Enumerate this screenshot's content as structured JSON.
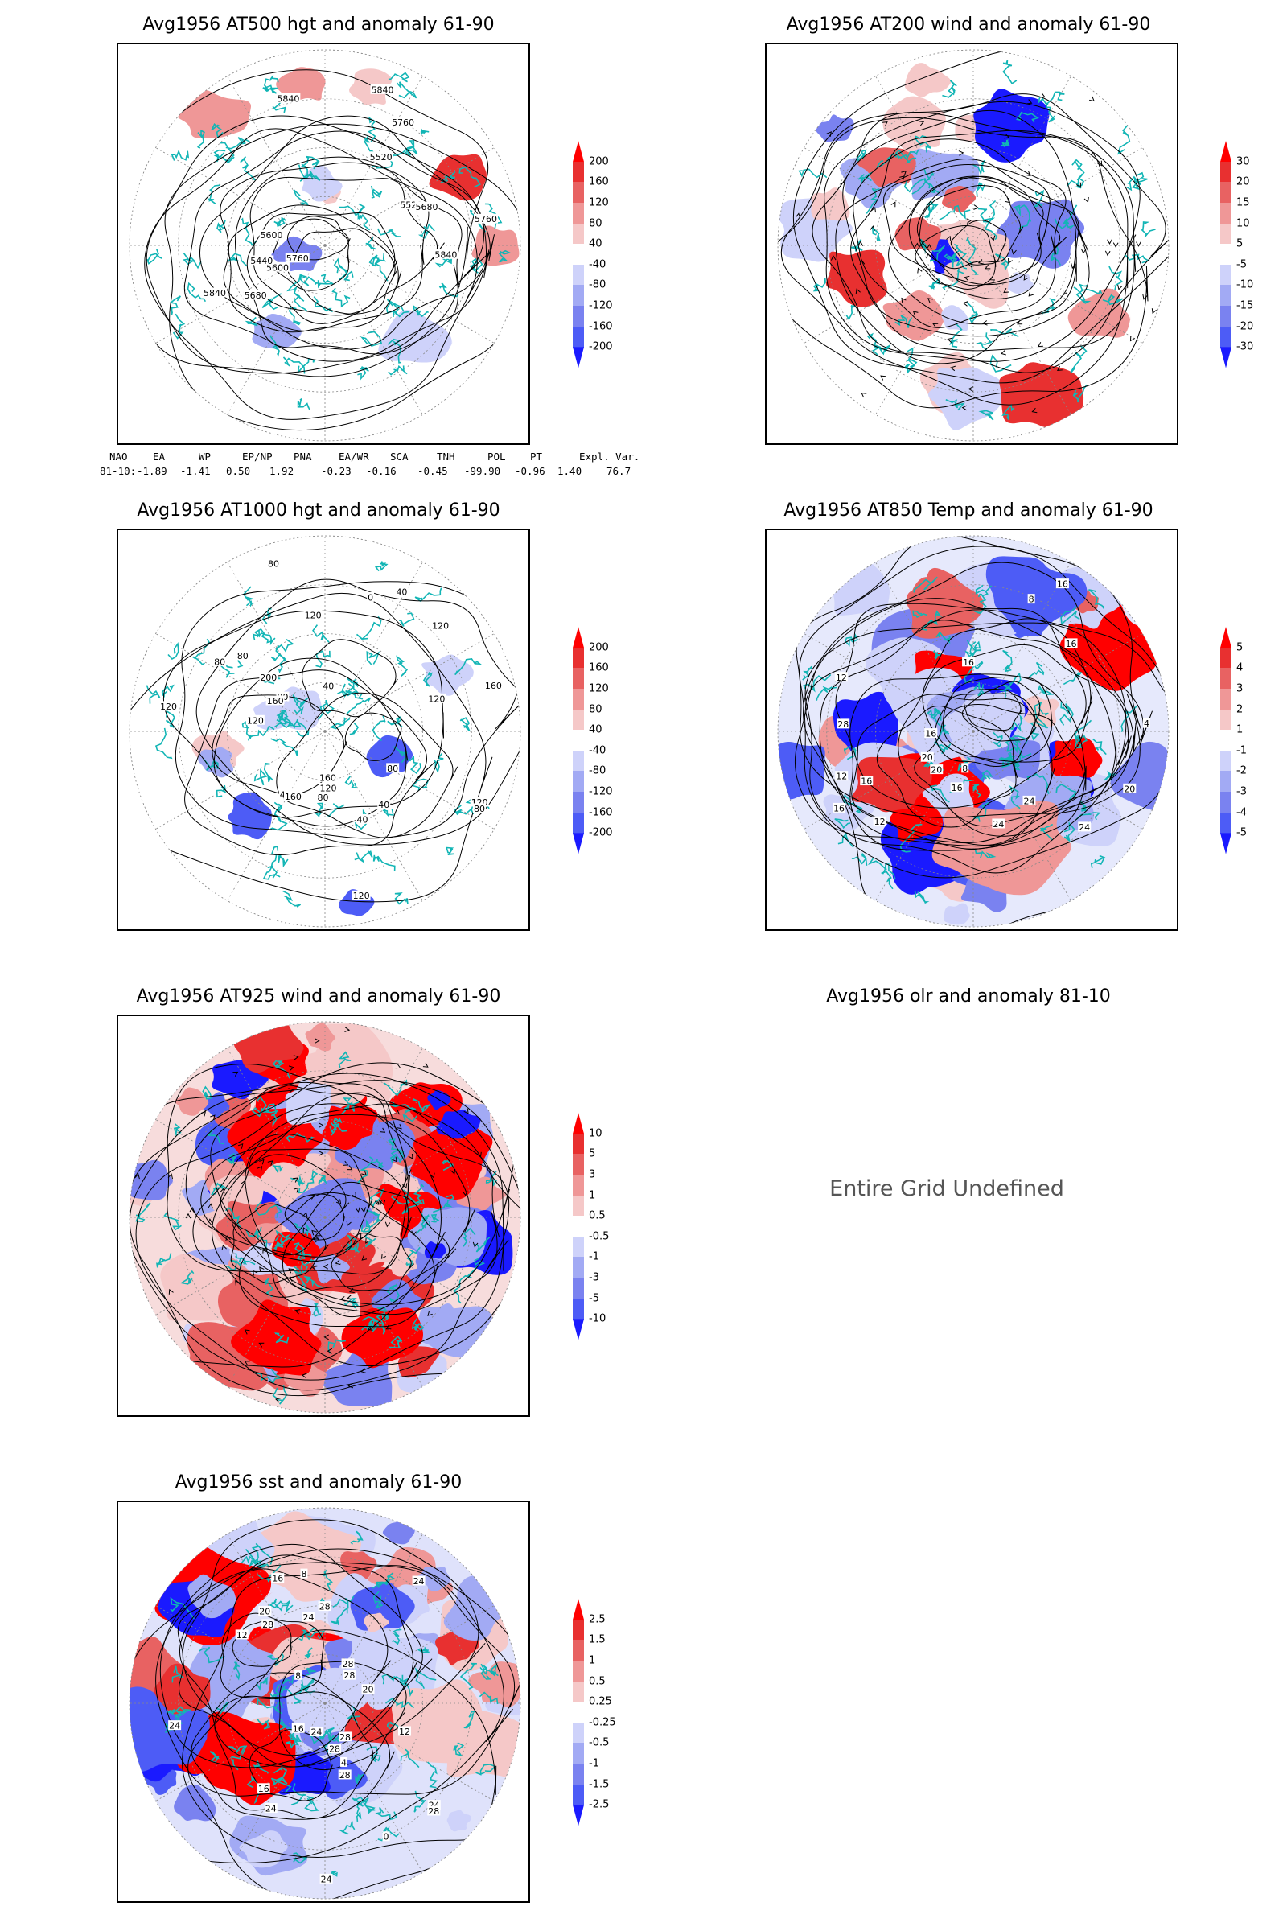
{
  "panels": [
    {
      "title": "Avg1956 AT500 hgt and anomaly 61-90",
      "colorbar": [
        "200",
        "160",
        "120",
        "80",
        "40",
        "-40",
        "-80",
        "-120",
        "-160",
        "-200"
      ],
      "contour_labels": [
        "5840",
        "5760",
        "5760",
        "5680",
        "5600",
        "5520",
        "5600",
        "5840",
        "5440",
        "5520",
        "5680",
        "5760",
        "5840",
        "5840"
      ]
    },
    {
      "title": "Avg1956 AT200 wind and anomaly 61-90",
      "colorbar": [
        "30",
        "20",
        "15",
        "10",
        "5",
        "-5",
        "-10",
        "-15",
        "-20",
        "-30"
      ]
    },
    {
      "title": "Avg1956 AT1000 hgt and anomaly 61-90",
      "colorbar": [
        "200",
        "160",
        "120",
        "80",
        "40",
        "-40",
        "-80",
        "-120",
        "-160",
        "-200"
      ],
      "contour_labels": [
        "120",
        "160",
        "80",
        "80",
        "120",
        "160",
        "40",
        "120",
        "80",
        "120",
        "40",
        "120",
        "40",
        "160",
        "120",
        "80",
        "200",
        "160",
        "120",
        "80",
        "40",
        "120",
        "40",
        "80",
        "0",
        "80"
      ]
    },
    {
      "title": "Avg1956 AT850 Temp and anomaly 61-90",
      "colorbar": [
        "5",
        "4",
        "3",
        "2",
        "1",
        "-1",
        "-2",
        "-3",
        "-4",
        "-5"
      ],
      "contour_labels": [
        "16",
        "12",
        "8",
        "12",
        "16",
        "24",
        "20",
        "16",
        "4",
        "8",
        "12",
        "20",
        "28",
        "24",
        "16",
        "24",
        "20",
        "16",
        "16",
        "16"
      ]
    },
    {
      "title": "Avg1956 AT925 wind and anomaly 61-90",
      "colorbar": [
        "10",
        "5",
        "3",
        "1",
        "0.5",
        "-0.5",
        "-1",
        "-3",
        "-5",
        "-10"
      ]
    },
    {
      "title": "Avg1956 olr and anomaly 81-10",
      "message": "Entire Grid Undefined"
    },
    {
      "title": "Avg1956 sst and anomaly 61-90",
      "colorbar": [
        "2.5",
        "1.5",
        "1",
        "0.5",
        "0.25",
        "-0.25",
        "-0.5",
        "-1",
        "-1.5",
        "-2.5"
      ],
      "contour_labels": [
        "28",
        "28",
        "24",
        "20",
        "16",
        "24",
        "24",
        "20",
        "16",
        "12",
        "8",
        "28",
        "28",
        "28",
        "16",
        "12",
        "8",
        "4",
        "0",
        "28",
        "24",
        "24",
        "28",
        "28",
        "24",
        "24"
      ]
    }
  ],
  "teleconnections": {
    "headers": [
      "NAO",
      "EA",
      "WP",
      "EP/NP",
      "PNA",
      "EA/WR",
      "SCA",
      "TNH",
      "POL",
      "PT",
      "Expl. Var."
    ],
    "row_label": "81-10:",
    "values": [
      "-1.89",
      "-1.41",
      "0.50",
      "1.92",
      "-0.23",
      "-0.16",
      "-0.45",
      "-99.90",
      "-0.96",
      "1.40",
      "76.7"
    ]
  },
  "colors": {
    "coast": "#12b5b5",
    "pos_shades": [
      "#f5c8c8",
      "#ef9797",
      "#e86262",
      "#e83030",
      "#ff0000"
    ],
    "neg_shades": [
      "#ced2fa",
      "#a2aaf4",
      "#7a82f0",
      "#4d5cf6",
      "#1a1aff"
    ],
    "contour": "#000000",
    "grid": "#888888"
  }
}
